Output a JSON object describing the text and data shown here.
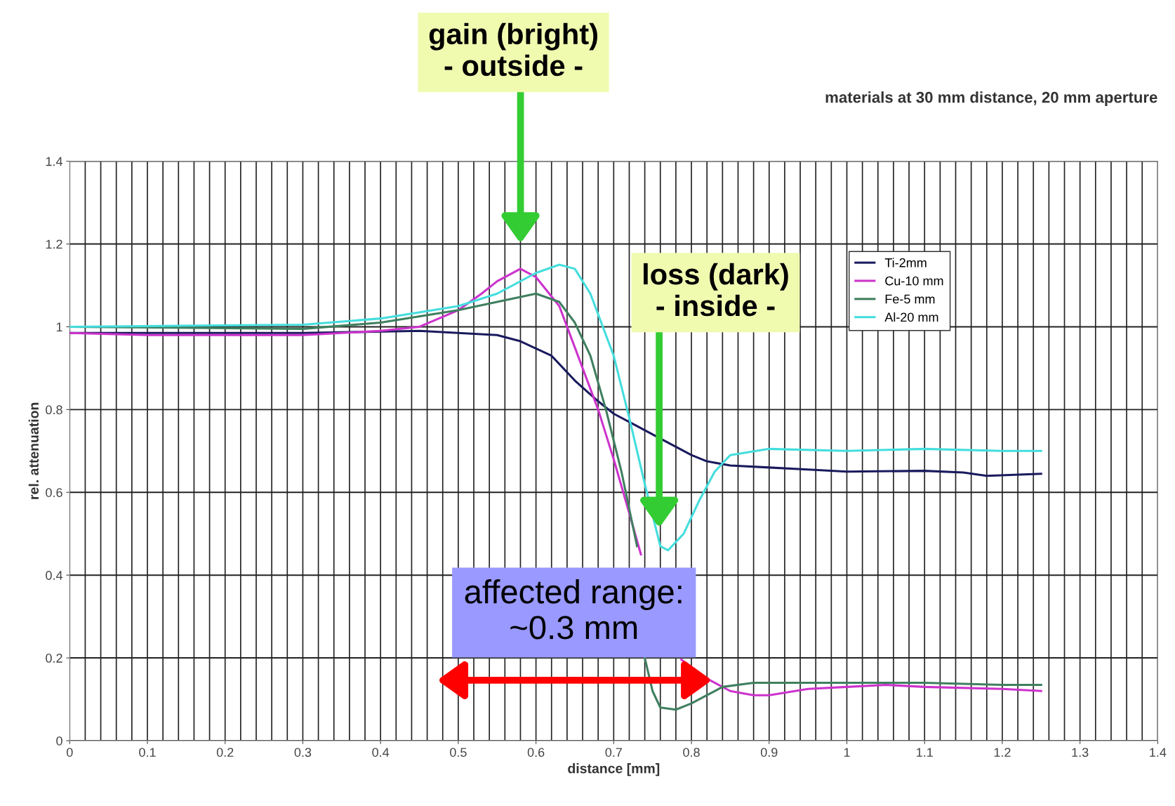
{
  "chart_data": {
    "type": "line",
    "title": "materials at 30 mm distance, 20 mm aperture",
    "xlabel": "distance [mm]",
    "ylabel": "rel. attenuation",
    "xlim": [
      0,
      1.4
    ],
    "xticks": [
      0,
      0.1,
      0.2,
      0.3,
      0.4,
      0.5,
      0.6,
      0.7,
      0.8,
      0.9,
      1,
      1.1,
      1.2,
      1.3,
      1.4
    ],
    "ylim": [
      0,
      1.4
    ],
    "yticks": [
      0,
      0.2,
      0.4,
      0.6,
      0.8,
      1,
      1.2,
      1.4
    ],
    "grid": true,
    "legend": "top right",
    "marker": "none",
    "line_style": "solid",
    "series": [
      {
        "name": "Ti-2mm",
        "color": "#1a1a5e",
        "x": [
          0,
          0.1,
          0.2,
          0.3,
          0.45,
          0.5,
          0.55,
          0.58,
          0.62,
          0.65,
          0.68,
          0.7,
          0.73,
          0.76,
          0.8,
          0.82,
          0.85,
          0.9,
          0.95,
          1.0,
          1.1,
          1.15,
          1.18,
          1.25
        ],
        "values": [
          0.985,
          0.985,
          0.985,
          0.985,
          0.99,
          0.985,
          0.98,
          0.965,
          0.93,
          0.87,
          0.82,
          0.79,
          0.76,
          0.73,
          0.69,
          0.675,
          0.665,
          0.66,
          0.655,
          0.65,
          0.652,
          0.648,
          0.64,
          0.645
        ]
      },
      {
        "name": "Cu-10 mm",
        "color": "#cc33cc",
        "x": [
          0,
          0.1,
          0.3,
          0.4,
          0.45,
          0.5,
          0.53,
          0.55,
          0.58,
          0.6,
          0.63,
          0.65,
          0.68,
          0.7,
          0.72,
          0.735,
          0.76,
          0.787,
          0.82,
          0.85,
          0.88,
          0.9,
          0.95,
          1.0,
          1.05,
          1.1,
          1.2,
          1.25
        ],
        "values": [
          0.985,
          0.98,
          0.98,
          0.99,
          1.0,
          1.04,
          1.08,
          1.11,
          1.14,
          1.12,
          1.05,
          0.95,
          0.8,
          0.68,
          0.55,
          0.45,
          null,
          0.196,
          0.15,
          0.12,
          0.11,
          0.11,
          0.125,
          0.13,
          0.135,
          0.13,
          0.125,
          0.12
        ]
      },
      {
        "name": "Fe-5 mm",
        "color": "#3f7f5f",
        "x": [
          0,
          0.3,
          0.4,
          0.5,
          0.55,
          0.6,
          0.63,
          0.65,
          0.67,
          0.69,
          0.71,
          0.73,
          0.735,
          0.74,
          0.75,
          0.76,
          0.78,
          0.8,
          0.82,
          0.84,
          0.88,
          1.0,
          1.1,
          1.2,
          1.25
        ],
        "values": [
          1.0,
          0.995,
          1.01,
          1.04,
          1.06,
          1.08,
          1.06,
          1.01,
          0.93,
          0.8,
          0.65,
          0.47,
          null,
          0.2,
          0.12,
          0.08,
          0.075,
          0.09,
          0.11,
          0.13,
          0.14,
          0.14,
          0.14,
          0.135,
          0.135
        ]
      },
      {
        "name": "Al-20 mm",
        "color": "#44dddd",
        "x": [
          0,
          0.3,
          0.4,
          0.5,
          0.55,
          0.6,
          0.63,
          0.65,
          0.67,
          0.7,
          0.72,
          0.74,
          0.76,
          0.77,
          0.79,
          0.81,
          0.83,
          0.85,
          0.9,
          1.0,
          1.1,
          1.2,
          1.25
        ],
        "values": [
          1.0,
          1.005,
          1.02,
          1.05,
          1.08,
          1.13,
          1.15,
          1.14,
          1.08,
          0.93,
          0.78,
          0.62,
          0.47,
          0.46,
          0.5,
          0.58,
          0.65,
          0.69,
          0.705,
          0.7,
          0.705,
          0.7,
          0.7
        ]
      }
    ],
    "annotations": [
      "gain (bright)\n- outside -",
      "loss (dark)\n- inside -",
      "affected range:\n~0.3 mm"
    ]
  }
}
